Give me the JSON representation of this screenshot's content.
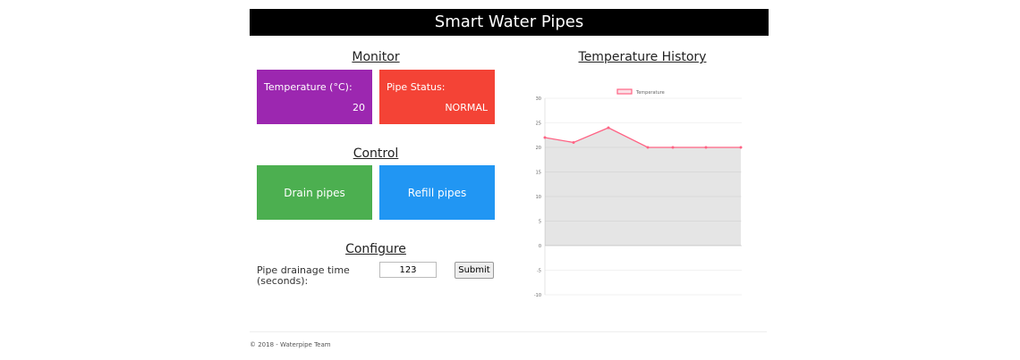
{
  "header": {
    "title": "Smart Water Pipes"
  },
  "monitor": {
    "title": "Monitor",
    "temperature": {
      "label": "Temperature (°C):",
      "value": "20",
      "color": "#9c27b0"
    },
    "pipe_status": {
      "label": "Pipe Status:",
      "value": "NORMAL",
      "color": "#f44336"
    }
  },
  "control": {
    "title": "Control",
    "drain": {
      "label": "Drain pipes",
      "color": "#4caf50"
    },
    "refill": {
      "label": "Refill pipes",
      "color": "#2196f3"
    }
  },
  "configure": {
    "title": "Configure",
    "label": "Pipe drainage time (seconds):",
    "input_value": "123",
    "submit_label": "Submit"
  },
  "history": {
    "title": "Temperature History"
  },
  "chart_data": {
    "type": "area",
    "x": [
      "",
      "",
      "",
      "",
      "",
      "",
      ""
    ],
    "series": [
      {
        "name": "Temperature",
        "values": [
          22,
          21,
          24,
          20,
          20,
          20,
          20
        ],
        "color": "#ff6384"
      }
    ],
    "ylim": [
      -10,
      30
    ],
    "yticks": [
      "30",
      "25",
      "20",
      "15",
      "10",
      "5",
      "0",
      "-5",
      "-10"
    ],
    "legend": "top",
    "grid": true
  },
  "footer": {
    "text": "© 2018 - Waterpipe Team"
  }
}
